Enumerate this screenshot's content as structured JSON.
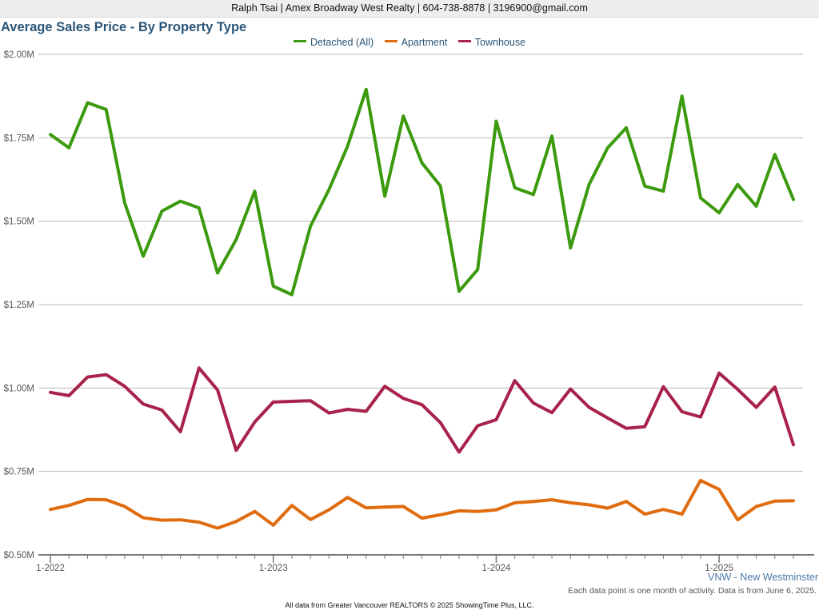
{
  "header": {
    "contact_line": "Ralph Tsai | Amex Broadway West Realty | 604-738-8878 | 3196900@gmail.com"
  },
  "chart_data": {
    "type": "line",
    "title": "Average Sales Price - By Property Type",
    "xlabel": "",
    "ylabel": "",
    "ylim": [
      500000,
      2000000
    ],
    "y_ticks": [
      500000,
      750000,
      1000000,
      1250000,
      1500000,
      1750000,
      2000000
    ],
    "y_tick_labels": [
      "$0.50M",
      "$0.75M",
      "$1.00M",
      "$1.25M",
      "$1.50M",
      "$1.75M",
      "$2.00M"
    ],
    "x_tick_labels": [
      "1-2022",
      "1-2023",
      "1-2024",
      "1-2025"
    ],
    "x_tick_indices": [
      0,
      12,
      24,
      36
    ],
    "grid": true,
    "legend_position": "top-center",
    "x": [
      "1-2022",
      "2-2022",
      "3-2022",
      "4-2022",
      "5-2022",
      "6-2022",
      "7-2022",
      "8-2022",
      "9-2022",
      "10-2022",
      "11-2022",
      "12-2022",
      "1-2023",
      "2-2023",
      "3-2023",
      "4-2023",
      "5-2023",
      "6-2023",
      "7-2023",
      "8-2023",
      "9-2023",
      "10-2023",
      "11-2023",
      "12-2023",
      "1-2024",
      "2-2024",
      "3-2024",
      "4-2024",
      "5-2024",
      "6-2024",
      "7-2024",
      "8-2024",
      "9-2024",
      "10-2024",
      "11-2024",
      "12-2024",
      "1-2025",
      "2-2025",
      "3-2025",
      "4-2025",
      "5-2025"
    ],
    "series": [
      {
        "name": "Detached (All)",
        "color": "#3c9a0e",
        "values": [
          1760000,
          1720000,
          1855000,
          1835000,
          1555000,
          1395000,
          1530000,
          1560000,
          1540000,
          1345000,
          1445000,
          1590000,
          1305000,
          1280000,
          1485000,
          1595000,
          1725000,
          1895000,
          1575000,
          1815000,
          1675000,
          1605000,
          1290000,
          1355000,
          1800000,
          1600000,
          1580000,
          1755000,
          1420000,
          1610000,
          1720000,
          1780000,
          1605000,
          1590000,
          1875000,
          1570000,
          1525000,
          1610000,
          1545000,
          1700000,
          1565000
        ]
      },
      {
        "name": "Apartment",
        "color": "#e06c10",
        "values": [
          636000,
          648000,
          666000,
          665000,
          645000,
          611000,
          604000,
          605000,
          598000,
          580000,
          600000,
          630000,
          589000,
          648000,
          606000,
          635000,
          672000,
          641000,
          643000,
          645000,
          610000,
          620000,
          632000,
          630000,
          635000,
          656000,
          660000,
          665000,
          656000,
          650000,
          640000,
          660000,
          622000,
          636000,
          622000,
          723000,
          696000,
          605000,
          645000,
          661000,
          662000
        ]
      },
      {
        "name": "Townhouse",
        "color": "#a8224a",
        "values": [
          987000,
          977000,
          1033000,
          1040000,
          1005000,
          952000,
          934000,
          869000,
          1060000,
          994000,
          813000,
          898000,
          958000,
          960000,
          962000,
          925000,
          936000,
          930000,
          1005000,
          969000,
          950000,
          896000,
          808000,
          887000,
          905000,
          1022000,
          955000,
          926000,
          997000,
          942000,
          910000,
          879000,
          884000,
          1004000,
          929000,
          913000,
          1045000,
          996000,
          942000,
          1003000,
          830000
        ]
      }
    ]
  },
  "region_label": "VNW - New Westminster",
  "note": "Each data point is one month of activity. Data is from June 6, 2025.",
  "footer": "All data from Greater Vancouver REALTORS © 2025 ShowingTime Plus, LLC."
}
